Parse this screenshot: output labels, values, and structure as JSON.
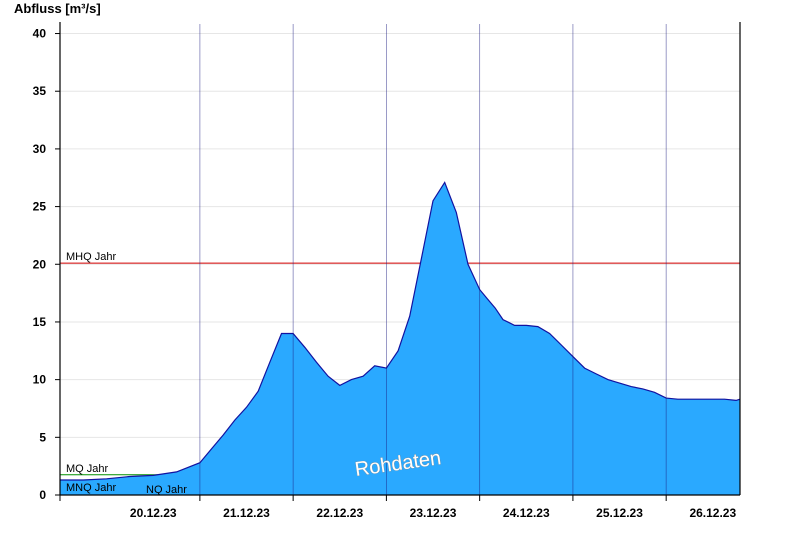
{
  "chart_data": {
    "type": "area",
    "ylabel": "Abfluss [m³/s]",
    "ylim": [
      0,
      41
    ],
    "yticks": [
      0,
      5,
      10,
      15,
      20,
      25,
      30,
      35,
      40
    ],
    "x_day_labels": [
      "20.12.23",
      "21.12.23",
      "22.12.23",
      "23.12.23",
      "24.12.23",
      "25.12.23",
      "26.12.23"
    ],
    "x_range": [
      "19.12.23 12:00",
      "26.12.23 19:00"
    ],
    "grid": true,
    "fill_color": "#2aa9ff",
    "line_color": "#1212a0",
    "watermark": "Rohdaten",
    "reference_lines": [
      {
        "label": "MHQ Jahr",
        "value": 20.1,
        "color": "#d40000"
      },
      {
        "label": "MQ Jahr",
        "value": 1.75,
        "color": "#008f00"
      },
      {
        "label": "MNQ Jahr",
        "value": 0.5,
        "color": "#000000"
      },
      {
        "label": "NQ Jahr",
        "value": 0.2,
        "color": "#000080"
      }
    ],
    "series": [
      {
        "x": [
          "19.12.23 12:00",
          "19.12.23 18:00",
          "20.12.23 00:00",
          "20.12.23 06:00",
          "20.12.23 12:00",
          "20.12.23 18:00",
          "21.12.23 00:00",
          "21.12.23 03:00",
          "21.12.23 06:00",
          "21.12.23 09:00",
          "21.12.23 12:00",
          "21.12.23 15:00",
          "21.12.23 18:00",
          "21.12.23 21:00",
          "22.12.23 00:00",
          "22.12.23 03:00",
          "22.12.23 06:00",
          "22.12.23 09:00",
          "22.12.23 12:00",
          "22.12.23 15:00",
          "22.12.23 18:00",
          "22.12.23 21:00",
          "23.12.23 00:00",
          "23.12.23 03:00",
          "23.12.23 06:00",
          "23.12.23 09:00",
          "23.12.23 12:00",
          "23.12.23 15:00",
          "23.12.23 18:00",
          "23.12.23 21:00",
          "24.12.23 00:00",
          "24.12.23 02:00",
          "24.12.23 04:00",
          "24.12.23 06:00",
          "24.12.23 09:00",
          "24.12.23 12:00",
          "24.12.23 15:00",
          "24.12.23 18:00",
          "24.12.23 21:00",
          "25.12.23 00:00",
          "25.12.23 03:00",
          "25.12.23 06:00",
          "25.12.23 09:00",
          "25.12.23 12:00",
          "25.12.23 15:00",
          "25.12.23 18:00",
          "25.12.23 21:00",
          "26.12.23 00:00",
          "26.12.23 03:00",
          "26.12.23 06:00",
          "26.12.23 09:00",
          "26.12.23 12:00",
          "26.12.23 15:00",
          "26.12.23 18:00",
          "26.12.23 19:00"
        ],
        "values": [
          1.3,
          1.3,
          1.4,
          1.6,
          1.7,
          2.0,
          2.8,
          4.0,
          5.2,
          6.5,
          7.6,
          9.0,
          11.5,
          14.0,
          14.0,
          12.8,
          11.5,
          10.3,
          9.5,
          10.0,
          10.3,
          11.2,
          11.0,
          12.5,
          15.5,
          20.5,
          25.5,
          27.1,
          24.5,
          20.0,
          17.8,
          17.0,
          16.2,
          15.2,
          14.7,
          14.7,
          14.6,
          14.0,
          13.0,
          12.0,
          11.0,
          10.5,
          10.0,
          9.7,
          9.4,
          9.2,
          8.9,
          8.4,
          8.3,
          8.3,
          8.3,
          8.3,
          8.3,
          8.2,
          8.3
        ]
      }
    ]
  }
}
